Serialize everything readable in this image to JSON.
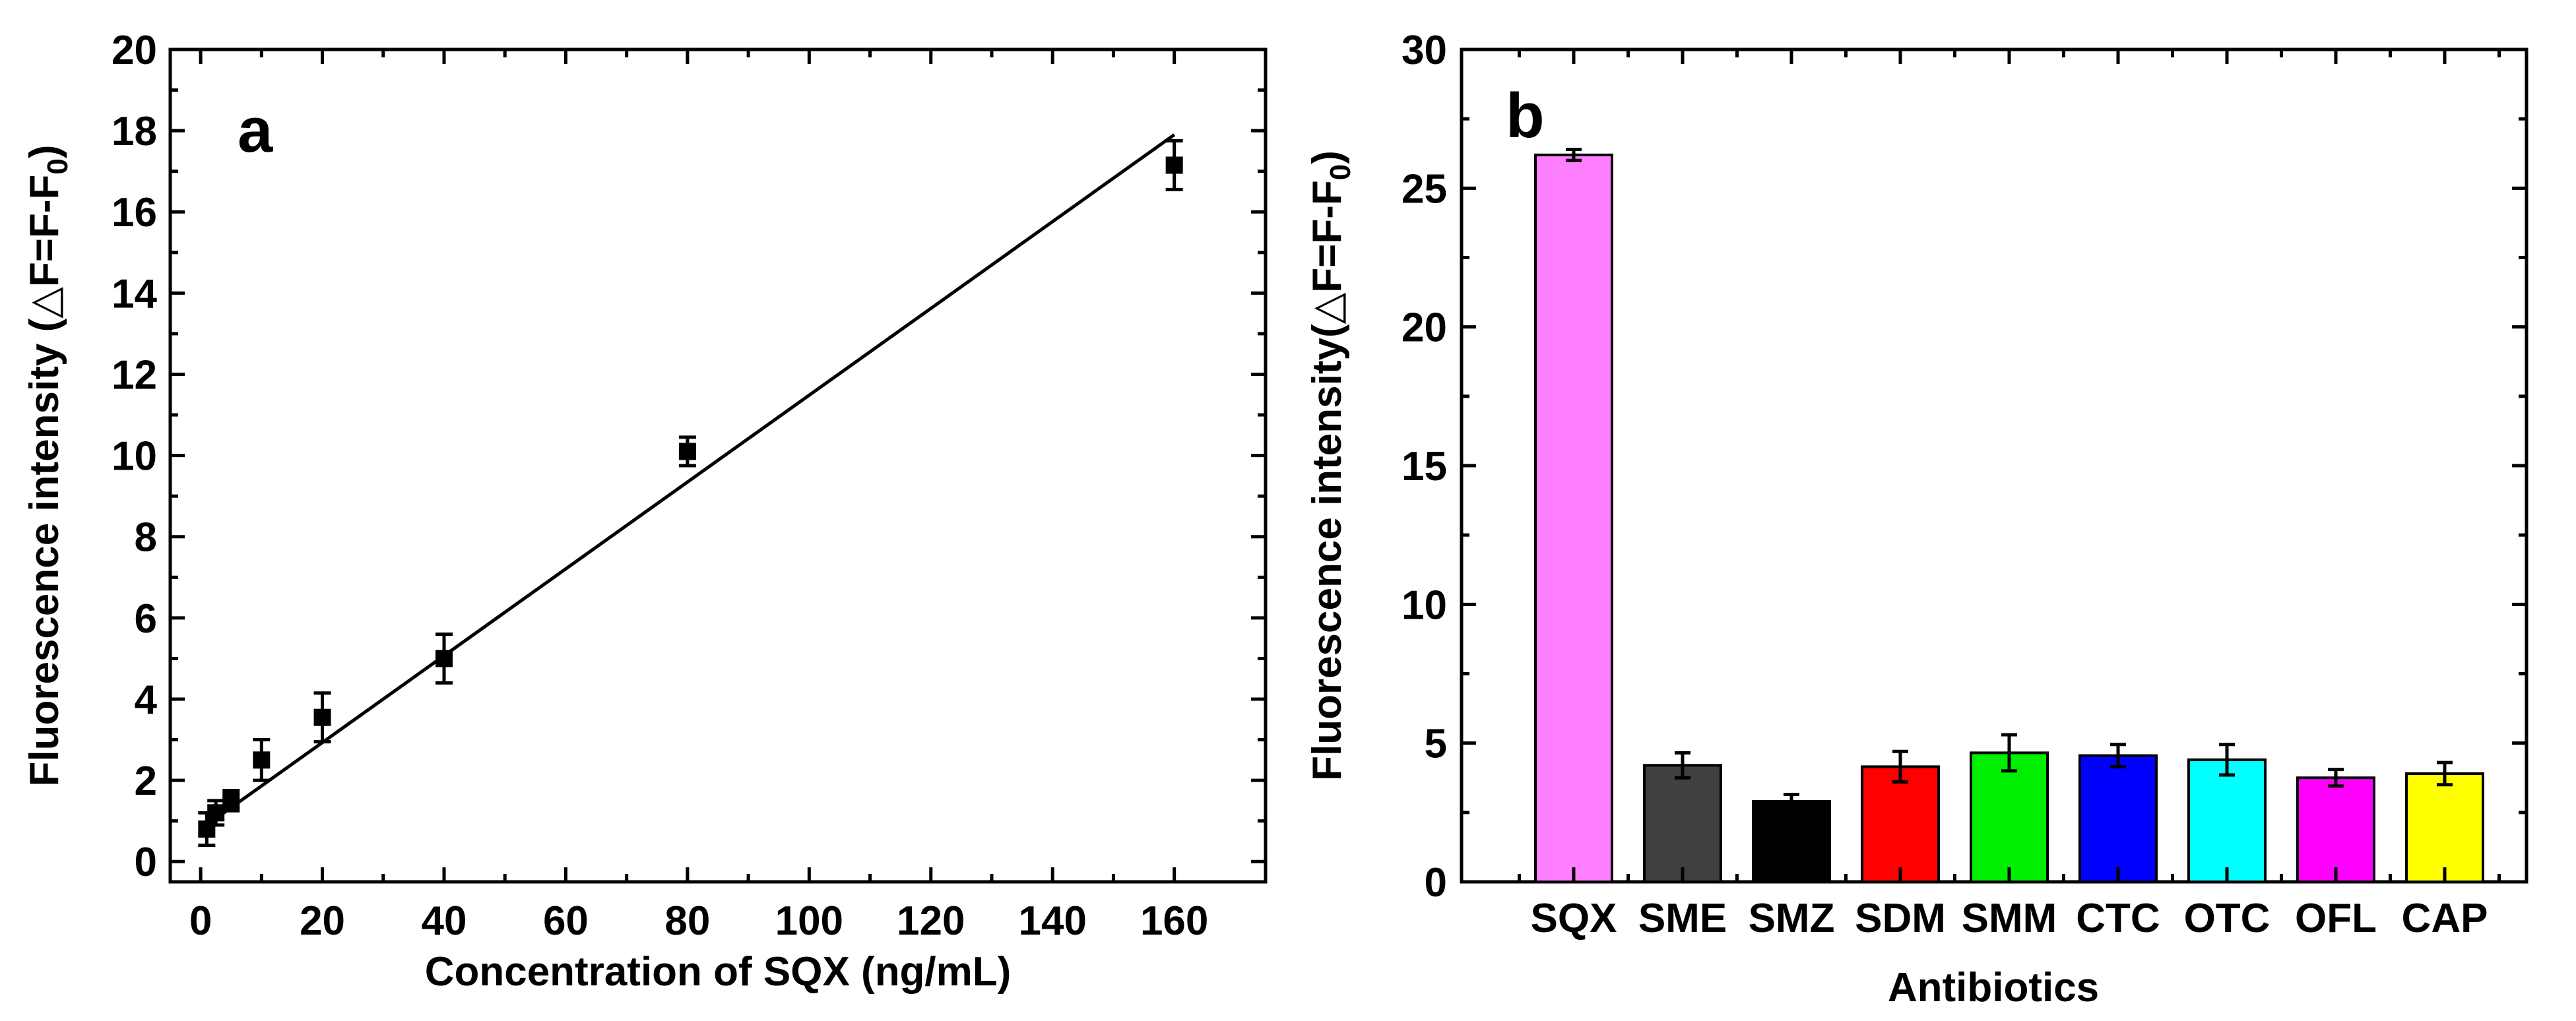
{
  "chart_data": [
    {
      "panel": "a",
      "type": "scatter",
      "xlabel": "Concentration of SQX (ng/mL)",
      "ylabel_main": "Fluorescence intensity (△F=F-F",
      "ylabel_sub": "0",
      "ylabel_close": ")",
      "xlim": [
        -5,
        175
      ],
      "ylim": [
        -0.5,
        20
      ],
      "xticks": [
        0,
        20,
        40,
        60,
        80,
        100,
        120,
        140,
        160
      ],
      "yticks": [
        0,
        2,
        4,
        6,
        8,
        10,
        12,
        14,
        16,
        18,
        20
      ],
      "xtick_labels": [
        "0",
        "20",
        "40",
        "60",
        "80",
        "100",
        "120",
        "140",
        "160"
      ],
      "ytick_labels": [
        "0",
        "2",
        "4",
        "6",
        "8",
        "10",
        "12",
        "14",
        "16",
        "18",
        "20"
      ],
      "points": [
        {
          "x": 1,
          "y": 0.8,
          "err": 0.4
        },
        {
          "x": 2.5,
          "y": 1.2,
          "err": 0.3
        },
        {
          "x": 5,
          "y": 1.5,
          "err": 0.25
        },
        {
          "x": 10,
          "y": 2.5,
          "err": 0.5
        },
        {
          "x": 20,
          "y": 3.55,
          "err": 0.6
        },
        {
          "x": 40,
          "y": 5.0,
          "err": 0.6
        },
        {
          "x": 80,
          "y": 10.1,
          "err": 0.35
        },
        {
          "x": 160,
          "y": 17.15,
          "err": 0.6
        }
      ],
      "fit": {
        "x1": 1,
        "y1": 0.9,
        "x2": 160,
        "y2": 17.9
      }
    },
    {
      "panel": "b",
      "type": "bar",
      "xlabel": "Antibiotics",
      "ylabel_main": "Fluorescence intensity(△F=F-F",
      "ylabel_sub": "0",
      "ylabel_close": ")",
      "ylim": [
        0,
        30
      ],
      "yticks": [
        0,
        5,
        10,
        15,
        20,
        25,
        30
      ],
      "ytick_labels": [
        "0",
        "5",
        "10",
        "15",
        "20",
        "25",
        "30"
      ],
      "categories": [
        "SQX",
        "SME",
        "SMZ",
        "SDM",
        "SMM",
        "CTC",
        "OTC",
        "OFL",
        "CAP"
      ],
      "values": [
        26.2,
        4.2,
        2.9,
        4.15,
        4.65,
        4.55,
        4.4,
        3.75,
        3.9
      ],
      "errors": [
        0.2,
        0.45,
        0.25,
        0.55,
        0.65,
        0.4,
        0.55,
        0.3,
        0.4
      ],
      "colors": [
        "#ff80ff",
        "#404040",
        "#000000",
        "#ff0000",
        "#00ee00",
        "#0000ff",
        "#00ffff",
        "#ff00ff",
        "#ffff00"
      ]
    }
  ]
}
